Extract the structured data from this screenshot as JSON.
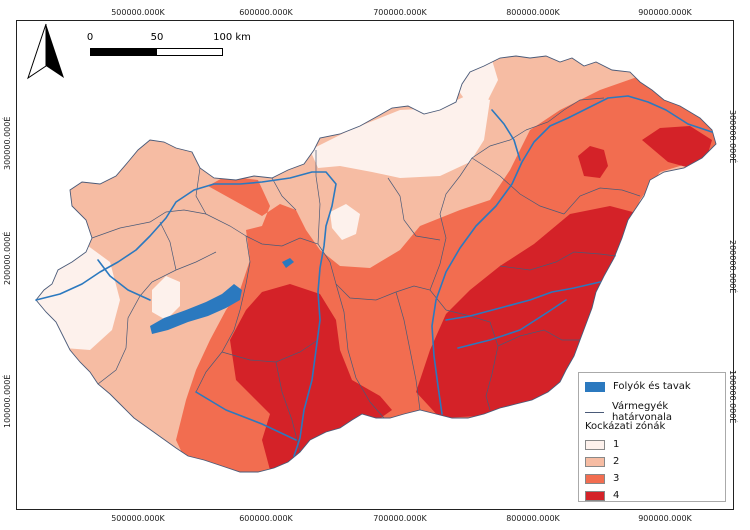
{
  "map": {
    "grid_ticks": {
      "x": [
        "500000.000K",
        "600000.000K",
        "700000.000K",
        "800000.000K",
        "900000.000K"
      ],
      "y": [
        "300000.000É",
        "200000.000É",
        "100000.000É"
      ]
    },
    "scale": {
      "labels": [
        "0",
        "50",
        "100 km"
      ]
    },
    "north_arrow": "north-arrow-icon",
    "colors": {
      "zone_1": "#fdf1ec",
      "zone_2": "#f6bca3",
      "zone_3": "#f26d50",
      "zone_4": "#d42228",
      "water": "#2b79bf",
      "county_border": "#4a5a78"
    },
    "legend": {
      "water_label": "Folyók és tavak",
      "county_label": "Vármegyék határvonala",
      "zones_title": "Kockázati zónák",
      "zones": [
        "1",
        "2",
        "3",
        "4"
      ]
    }
  }
}
